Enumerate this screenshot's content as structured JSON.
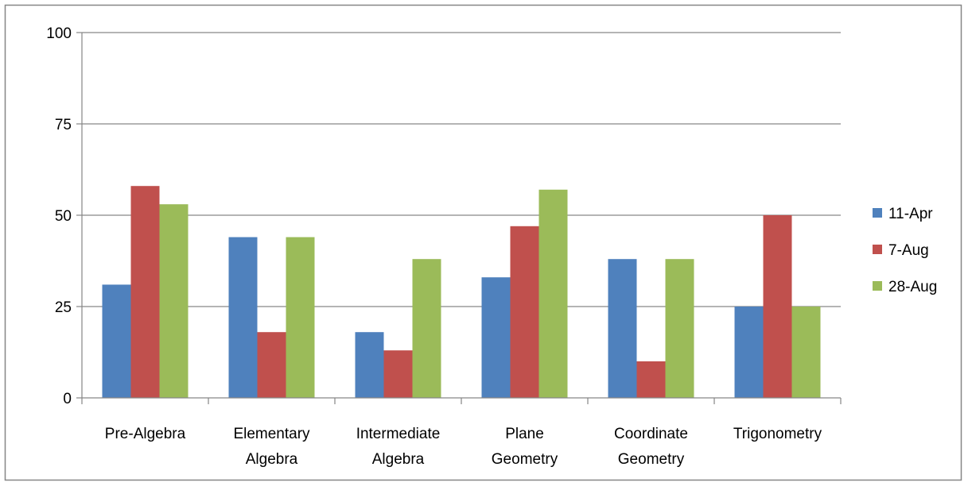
{
  "chart_data": {
    "type": "bar",
    "title": "",
    "xlabel": "",
    "ylabel": "",
    "ylim": [
      0,
      100
    ],
    "yticks": [
      0,
      25,
      50,
      75,
      100
    ],
    "grid": true,
    "legend_position": "right",
    "categories": [
      [
        "Pre-Algebra"
      ],
      [
        "Elementary",
        "Algebra"
      ],
      [
        "Intermediate",
        "Algebra"
      ],
      [
        "Plane",
        "Geometry"
      ],
      [
        "Coordinate",
        "Geometry"
      ],
      [
        "Trigonometry"
      ]
    ],
    "series": [
      {
        "name": "11-Apr",
        "color": "#4F81BD",
        "values": [
          31,
          44,
          18,
          33,
          38,
          25
        ]
      },
      {
        "name": "7-Aug",
        "color": "#C0504D",
        "values": [
          58,
          18,
          13,
          47,
          10,
          50
        ]
      },
      {
        "name": "28-Aug",
        "color": "#9BBB59",
        "values": [
          53,
          44,
          38,
          57,
          38,
          25
        ]
      }
    ]
  }
}
